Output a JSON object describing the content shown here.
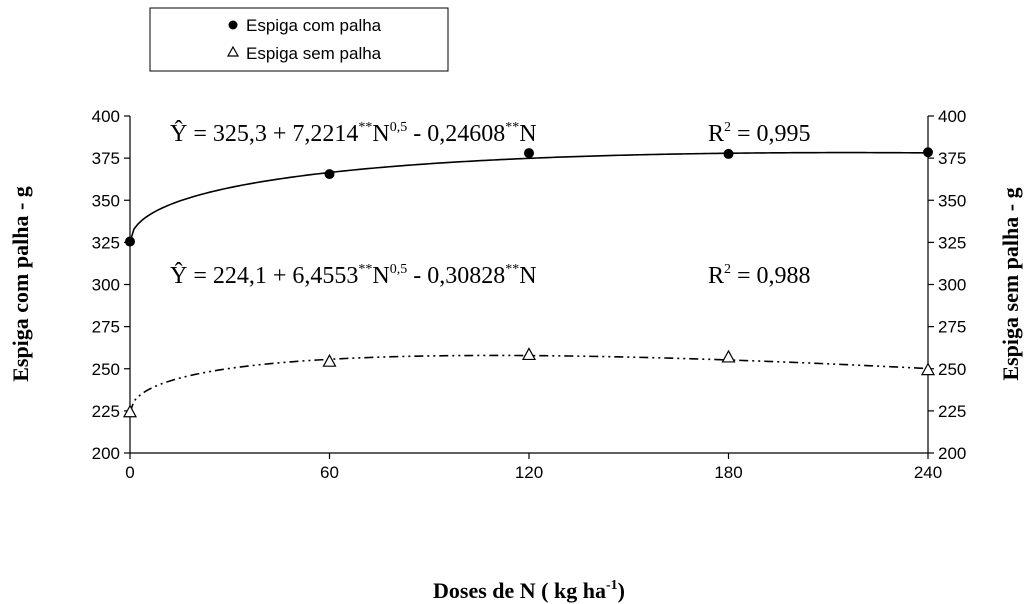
{
  "chart_data": {
    "type": "scatter",
    "x": [
      0,
      60,
      120,
      180,
      240
    ],
    "xticks": [
      "0",
      "60",
      "120",
      "180",
      "240"
    ],
    "yticks": [
      "200",
      "225",
      "250",
      "275",
      "300",
      "325",
      "350",
      "375",
      "400"
    ],
    "ylim": [
      200,
      400
    ],
    "xlim": [
      0,
      240
    ],
    "xlabel": {
      "main": "Doses de N ( kg ha",
      "sup": "-1",
      "tail": ")"
    },
    "ylabel_left": "Espiga com palha - g",
    "ylabel_right": "Espiga sem palha - g",
    "legend_position": "top-left",
    "series": [
      {
        "name": "Espiga com palha",
        "marker": "filled-circle",
        "line": "solid",
        "values": [
          325.5,
          365.5,
          378,
          377.5,
          378.5
        ],
        "fit": {
          "a": 325.3,
          "b": 7.2214,
          "c": -0.24608
        },
        "equation": {
          "lhs": "Ŷ = 325,3 + 7,2214",
          "sup1": "**",
          "mid1": "N",
          "sup2": "0,5",
          "mid2": " - 0,24608",
          "sup3": "**",
          "mid3": "N",
          "r2_pre": "R",
          "r2_sup": "2",
          "r2_post": " = 0,995"
        }
      },
      {
        "name": "Espiga sem palha",
        "marker": "open-triangle",
        "line": "dash-dot",
        "values": [
          224.5,
          254.5,
          258.5,
          257,
          249.5
        ],
        "fit": {
          "a": 224.1,
          "b": 6.4553,
          "c": -0.30828
        },
        "equation": {
          "lhs": "Ŷ = 224,1 + 6,4553",
          "sup1": "**",
          "mid1": "N",
          "sup2": "0,5",
          "mid2": " - 0,30828",
          "sup3": "**",
          "mid3": "N",
          "r2_pre": "R",
          "r2_sup": "2",
          "r2_post": " = 0,988"
        }
      }
    ]
  }
}
